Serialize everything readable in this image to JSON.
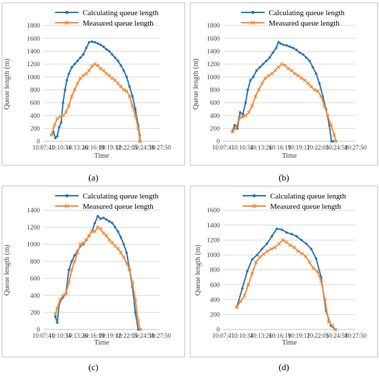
{
  "colors": {
    "calculated": "#2e75b6",
    "measured": "#f28c38"
  },
  "chart_data": [
    {
      "type": "line",
      "panel_label": "(a)",
      "xlabel": "Time",
      "ylabel": "Queue length (m)",
      "ylim": [
        0,
        1800
      ],
      "yticks": [
        "0",
        "200",
        "400",
        "600",
        "800",
        "1000",
        "1200",
        "1400",
        "1600",
        "1800"
      ],
      "xlim": [
        "10:07:41",
        "10:27:50"
      ],
      "xticks": [
        "10:07:41",
        "10:10:34",
        "10:13:26",
        "10:16:19",
        "10:19:12",
        "10:22:05",
        "10:24:58",
        "10:27:50"
      ],
      "grid": true,
      "legend": "top",
      "series": [
        {
          "name": "Calculating queue length",
          "x": [
            "10:09:05",
            "10:09:25",
            "10:09:45",
            "10:10:05",
            "10:10:25",
            "10:10:45",
            "10:11:05",
            "10:11:25",
            "10:11:45",
            "10:12:05",
            "10:12:35",
            "10:13:05",
            "10:13:35",
            "10:14:05",
            "10:14:35",
            "10:15:05",
            "10:15:35",
            "10:16:05",
            "10:16:35",
            "10:17:05",
            "10:17:35",
            "10:18:05",
            "10:18:35",
            "10:19:05",
            "10:19:35",
            "10:20:05",
            "10:20:35",
            "10:21:05",
            "10:21:35",
            "10:22:05",
            "10:22:35",
            "10:23:05",
            "10:23:35",
            "10:24:05",
            "10:24:20",
            "10:24:25"
          ],
          "values": [
            100,
            150,
            50,
            80,
            220,
            290,
            600,
            800,
            950,
            1050,
            1150,
            1200,
            1250,
            1300,
            1350,
            1450,
            1540,
            1550,
            1540,
            1520,
            1500,
            1470,
            1430,
            1400,
            1350,
            1300,
            1250,
            1180,
            1100,
            1000,
            850,
            700,
            500,
            250,
            100,
            0
          ]
        },
        {
          "name": "Measured queue length",
          "x": [
            "10:09:05",
            "10:09:35",
            "10:10:05",
            "10:10:35",
            "10:11:05",
            "10:11:35",
            "10:12:05",
            "10:12:35",
            "10:13:05",
            "10:13:35",
            "10:14:05",
            "10:14:35",
            "10:15:05",
            "10:15:35",
            "10:16:05",
            "10:16:35",
            "10:17:05",
            "10:17:35",
            "10:18:05",
            "10:18:35",
            "10:19:05",
            "10:19:35",
            "10:20:05",
            "10:20:35",
            "10:21:05",
            "10:21:35",
            "10:22:05",
            "10:22:35",
            "10:23:05",
            "10:23:35",
            "10:24:05",
            "10:24:25"
          ],
          "values": [
            100,
            250,
            350,
            380,
            400,
            450,
            550,
            700,
            800,
            900,
            980,
            1020,
            1050,
            1100,
            1170,
            1200,
            1180,
            1130,
            1100,
            1050,
            1020,
            980,
            950,
            900,
            850,
            800,
            780,
            700,
            550,
            400,
            200,
            0
          ]
        }
      ]
    },
    {
      "type": "line",
      "panel_label": "(b)",
      "xlabel": "Time",
      "ylabel": "Queue length (m)",
      "ylim": [
        0,
        1800
      ],
      "yticks": [
        "0",
        "200",
        "400",
        "600",
        "800",
        "1000",
        "1200",
        "1400",
        "1600",
        "1800"
      ],
      "xlim": [
        "10:07:41",
        "10:27:50"
      ],
      "xticks": [
        "10:07:41",
        "10:10:34",
        "10:13:26",
        "10:16:19",
        "10:19:12",
        "10:22:05",
        "10:24:58",
        "10:27:50"
      ],
      "grid": true,
      "legend": "top",
      "series": [
        {
          "name": "Calculating queue length",
          "x": [
            "10:09:05",
            "10:09:25",
            "10:09:50",
            "10:10:15",
            "10:10:40",
            "10:11:05",
            "10:11:25",
            "10:11:50",
            "10:12:15",
            "10:12:45",
            "10:13:15",
            "10:13:45",
            "10:14:15",
            "10:14:45",
            "10:15:15",
            "10:15:45",
            "10:16:05",
            "10:16:25",
            "10:16:50",
            "10:17:20",
            "10:17:50",
            "10:18:20",
            "10:18:50",
            "10:19:20",
            "10:19:50",
            "10:20:20",
            "10:20:50",
            "10:21:20",
            "10:21:50",
            "10:22:20",
            "10:22:50",
            "10:23:20",
            "10:23:50",
            "10:24:10",
            "10:24:25"
          ],
          "values": [
            150,
            250,
            200,
            450,
            420,
            600,
            800,
            950,
            1000,
            1100,
            1150,
            1200,
            1250,
            1300,
            1380,
            1450,
            1540,
            1520,
            1500,
            1490,
            1470,
            1450,
            1420,
            1380,
            1350,
            1300,
            1250,
            1150,
            1050,
            900,
            700,
            500,
            250,
            0,
            0
          ]
        },
        {
          "name": "Measured queue length",
          "x": [
            "10:09:05",
            "10:09:35",
            "10:10:05",
            "10:10:35",
            "10:11:05",
            "10:11:35",
            "10:12:05",
            "10:12:35",
            "10:13:05",
            "10:13:35",
            "10:14:05",
            "10:14:35",
            "10:15:05",
            "10:15:35",
            "10:16:05",
            "10:16:35",
            "10:17:05",
            "10:17:35",
            "10:18:05",
            "10:18:35",
            "10:19:05",
            "10:19:35",
            "10:20:05",
            "10:20:35",
            "10:21:05",
            "10:21:35",
            "10:22:05",
            "10:22:35",
            "10:23:05",
            "10:23:35",
            "10:24:05",
            "10:24:35",
            "10:24:50"
          ],
          "values": [
            150,
            200,
            350,
            380,
            400,
            450,
            550,
            700,
            800,
            900,
            980,
            1020,
            1050,
            1100,
            1150,
            1200,
            1180,
            1130,
            1100,
            1050,
            1020,
            980,
            950,
            900,
            850,
            800,
            780,
            700,
            550,
            400,
            250,
            100,
            0
          ]
        }
      ]
    },
    {
      "type": "line",
      "panel_label": "(c)",
      "xlabel": "Time",
      "ylabel": "Queue length (m)",
      "ylim": [
        0,
        1400
      ],
      "yticks": [
        "0",
        "200",
        "400",
        "600",
        "800",
        "1000",
        "1200",
        "1400"
      ],
      "xlim": [
        "10:07:41",
        "10:27:50"
      ],
      "xticks": [
        "10:07:41",
        "10:10:34",
        "10:13:26",
        "10:16:19",
        "10:19:12",
        "10:22:05",
        "10:24:58",
        "10:27:50"
      ],
      "grid": true,
      "legend": "top",
      "series": [
        {
          "name": "Calculating queue length",
          "x": [
            "10:09:45",
            "10:10:05",
            "10:10:25",
            "10:11:05",
            "10:11:35",
            "10:12:05",
            "10:12:35",
            "10:13:05",
            "10:13:35",
            "10:14:05",
            "10:14:35",
            "10:15:05",
            "10:15:35",
            "10:16:05",
            "10:16:35",
            "10:17:05",
            "10:17:35",
            "10:18:05",
            "10:18:35",
            "10:19:05",
            "10:19:35",
            "10:20:05",
            "10:20:35",
            "10:21:05",
            "10:21:35",
            "10:22:05",
            "10:22:35",
            "10:23:05",
            "10:23:35",
            "10:24:05",
            "10:24:25"
          ],
          "values": [
            150,
            80,
            300,
            380,
            420,
            700,
            800,
            870,
            920,
            980,
            1000,
            1050,
            1100,
            1150,
            1250,
            1330,
            1300,
            1310,
            1290,
            1270,
            1250,
            1200,
            1150,
            1080,
            1000,
            900,
            700,
            500,
            200,
            0,
            0
          ]
        },
        {
          "name": "Measured queue length",
          "x": [
            "10:09:45",
            "10:10:05",
            "10:10:35",
            "10:11:05",
            "10:11:35",
            "10:12:05",
            "10:12:35",
            "10:13:05",
            "10:13:35",
            "10:14:05",
            "10:14:35",
            "10:15:05",
            "10:15:35",
            "10:16:05",
            "10:16:35",
            "10:17:05",
            "10:17:35",
            "10:18:05",
            "10:18:35",
            "10:19:05",
            "10:19:35",
            "10:20:05",
            "10:20:35",
            "10:21:05",
            "10:21:35",
            "10:22:05",
            "10:22:35",
            "10:23:05",
            "10:23:35",
            "10:24:05",
            "10:24:25"
          ],
          "values": [
            180,
            250,
            350,
            400,
            420,
            550,
            700,
            800,
            900,
            1000,
            1010,
            1050,
            1100,
            1150,
            1150,
            1200,
            1180,
            1130,
            1100,
            1050,
            1020,
            980,
            950,
            900,
            850,
            780,
            700,
            550,
            350,
            100,
            0
          ]
        }
      ]
    },
    {
      "type": "line",
      "panel_label": "(d)",
      "xlabel": "Time",
      "ylabel": "Queue length (m)",
      "ylim": [
        0,
        1600
      ],
      "yticks": [
        "0",
        "200",
        "400",
        "600",
        "800",
        "1000",
        "1200",
        "1400",
        "1600"
      ],
      "xlim": [
        "10:07:41",
        "10:27:50"
      ],
      "xticks": [
        "10:07:41",
        "10:10:34",
        "10:13:26",
        "10:16:19",
        "10:19:12",
        "10:22:05",
        "10:24:58",
        "10:27:50"
      ],
      "grid": true,
      "legend": "top",
      "series": [
        {
          "name": "Calculating queue length",
          "x": [
            "10:09:45",
            "10:10:35",
            "10:11:20",
            "10:12:05",
            "10:12:50",
            "10:13:35",
            "10:14:20",
            "10:15:05",
            "10:15:50",
            "10:16:35",
            "10:17:20",
            "10:18:05",
            "10:18:50",
            "10:19:35",
            "10:20:20",
            "10:21:05",
            "10:21:50",
            "10:22:35",
            "10:23:20",
            "10:24:05",
            "10:24:45"
          ],
          "values": [
            300,
            550,
            780,
            940,
            1000,
            1080,
            1150,
            1250,
            1350,
            1340,
            1300,
            1280,
            1250,
            1200,
            1150,
            1080,
            950,
            700,
            250,
            50,
            0
          ]
        },
        {
          "name": "Measured queue length",
          "x": [
            "10:09:45",
            "10:10:20",
            "10:10:55",
            "10:11:30",
            "10:12:05",
            "10:12:40",
            "10:13:15",
            "10:13:50",
            "10:14:25",
            "10:15:00",
            "10:15:35",
            "10:16:10",
            "10:16:45",
            "10:17:20",
            "10:17:55",
            "10:18:30",
            "10:19:05",
            "10:19:40",
            "10:20:15",
            "10:20:50",
            "10:21:25",
            "10:22:00",
            "10:22:35",
            "10:23:10",
            "10:23:45",
            "10:24:20",
            "10:24:45"
          ],
          "values": [
            300,
            380,
            450,
            600,
            750,
            900,
            970,
            1010,
            1050,
            1080,
            1100,
            1150,
            1200,
            1170,
            1130,
            1100,
            1050,
            1020,
            980,
            900,
            820,
            780,
            650,
            400,
            100,
            50,
            0
          ]
        }
      ]
    }
  ]
}
